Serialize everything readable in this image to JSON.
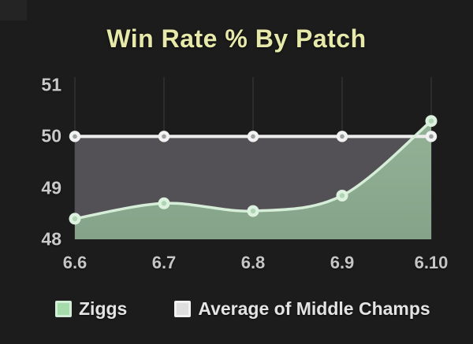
{
  "chart": {
    "title": "Win Rate % By Patch"
  },
  "chart_data": {
    "type": "area",
    "title": "Win Rate % By Patch",
    "x": [
      "6.6",
      "6.7",
      "6.8",
      "6.9",
      "6.10"
    ],
    "series": [
      {
        "name": "Ziggs",
        "type": "areaspline",
        "values": [
          48.4,
          48.7,
          48.55,
          48.85,
          50.3
        ]
      },
      {
        "name": "Average of Middle Champs",
        "type": "area",
        "values": [
          50,
          50,
          50,
          50,
          50
        ]
      }
    ],
    "xlabel": "",
    "ylabel": "",
    "ylim": [
      48,
      51
    ],
    "yticks": [
      48,
      49,
      50,
      51
    ],
    "yticks_display": [
      "51",
      "50",
      "49",
      "48"
    ],
    "grid": "vertical-category-lines",
    "legend_position": "bottom"
  },
  "legend": {
    "items": [
      {
        "label": "Ziggs",
        "swatch": "#a6dbac",
        "swatch_border": "#d2eed6"
      },
      {
        "label": "Average of Middle Champs",
        "swatch": "#dedede",
        "swatch_border": "#f1f1f1"
      }
    ]
  },
  "colors": {
    "background": "#1c1c1c",
    "title": "#e7e9aa",
    "axis_label": "#c9c9c9",
    "gridline": "#2b2c2b",
    "ziggs_fill_top": "#93b296",
    "ziggs_fill_bottom": "#84a388",
    "ziggs_line": "#d6eed8",
    "ziggs_marker": "#dcf1de",
    "ziggs_marker_center": "#aed5b4",
    "avg_fill": "#545156",
    "avg_line": "#ececec",
    "avg_marker": "#f2f2f2",
    "avg_marker_center": "#9aa09d"
  }
}
